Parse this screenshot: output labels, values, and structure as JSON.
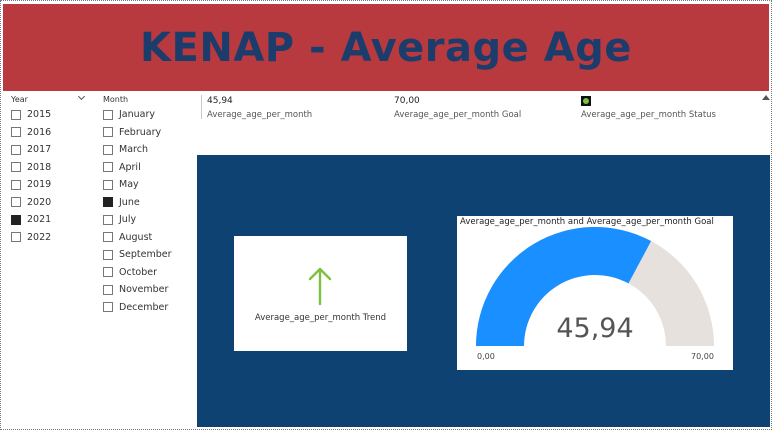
{
  "title": "KENAP - Average Age",
  "year_slicer": {
    "header": "Year",
    "items": [
      {
        "label": "2015",
        "checked": false
      },
      {
        "label": "2016",
        "checked": false
      },
      {
        "label": "2017",
        "checked": false
      },
      {
        "label": "2018",
        "checked": false
      },
      {
        "label": "2019",
        "checked": false
      },
      {
        "label": "2020",
        "checked": false
      },
      {
        "label": "2021",
        "checked": true
      },
      {
        "label": "2022",
        "checked": false
      }
    ]
  },
  "month_slicer": {
    "header": "Month",
    "items": [
      {
        "label": "January",
        "checked": false
      },
      {
        "label": "February",
        "checked": false
      },
      {
        "label": "March",
        "checked": false
      },
      {
        "label": "April",
        "checked": false
      },
      {
        "label": "May",
        "checked": false
      },
      {
        "label": "June",
        "checked": true
      },
      {
        "label": "July",
        "checked": false
      },
      {
        "label": "August",
        "checked": false
      },
      {
        "label": "September",
        "checked": false
      },
      {
        "label": "October",
        "checked": false
      },
      {
        "label": "November",
        "checked": false
      },
      {
        "label": "December",
        "checked": false
      }
    ]
  },
  "kpis": {
    "value": {
      "value": "45,94",
      "label": "Average_age_per_month"
    },
    "goal": {
      "value": "70,00",
      "label": "Average_age_per_month Goal"
    },
    "status": {
      "label": "Average_age_per_month Status",
      "color": "#7cc242"
    }
  },
  "trend_card": {
    "label": "Average_age_per_month Trend",
    "direction": "up",
    "arrow_color": "#7cc242"
  },
  "gauge": {
    "title": "Average_age_per_month and Average_age_per_month Goal",
    "value": 45.94,
    "value_label": "45,94",
    "min": 0,
    "max": 70,
    "min_label": "0,00",
    "max_label": "70,00",
    "fill_color": "#1a8fff",
    "track_color": "#e6e1dc"
  },
  "colors": {
    "banner": "#b83a3f",
    "title_text": "#1c3d6c",
    "canvas": "#0d4273"
  }
}
